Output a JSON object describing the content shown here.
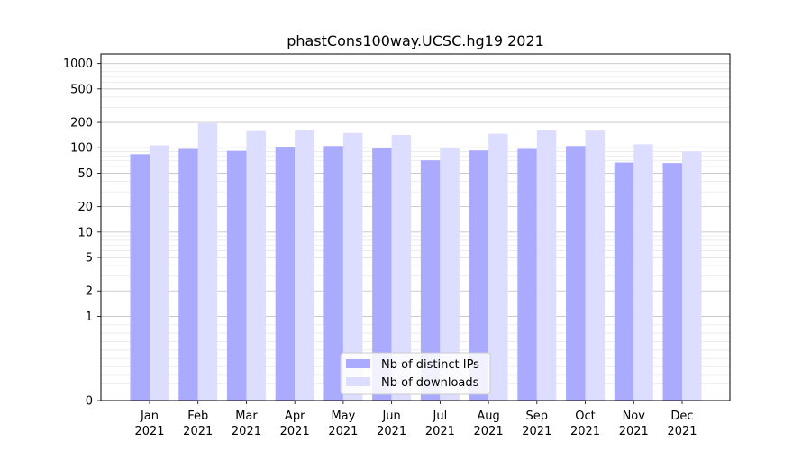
{
  "chart_data": {
    "type": "bar",
    "title": "phastCons100way.UCSC.hg19 2021",
    "xlabel": "",
    "ylabel": "",
    "y_scale": "symlog",
    "categories": [
      [
        "Jan",
        "2021"
      ],
      [
        "Feb",
        "2021"
      ],
      [
        "Mar",
        "2021"
      ],
      [
        "Apr",
        "2021"
      ],
      [
        "May",
        "2021"
      ],
      [
        "Jun",
        "2021"
      ],
      [
        "Jul",
        "2021"
      ],
      [
        "Aug",
        "2021"
      ],
      [
        "Sep",
        "2021"
      ],
      [
        "Oct",
        "2021"
      ],
      [
        "Nov",
        "2021"
      ],
      [
        "Dec",
        "2021"
      ]
    ],
    "series": [
      {
        "name": "Nb of distinct IPs",
        "color": "#aaaaff",
        "values": [
          84,
          97,
          92,
          103,
          105,
          100,
          71,
          93,
          97,
          105,
          67,
          66
        ]
      },
      {
        "name": "Nb of downloads",
        "color": "#ddddff",
        "values": [
          107,
          195,
          158,
          161,
          150,
          142,
          100,
          147,
          163,
          160,
          110,
          90
        ]
      }
    ],
    "yticks": [
      0,
      1,
      2,
      5,
      10,
      20,
      50,
      100,
      200,
      500,
      1000
    ],
    "ylim": [
      0,
      1300
    ],
    "grid": true,
    "legend_position": "lower center"
  }
}
